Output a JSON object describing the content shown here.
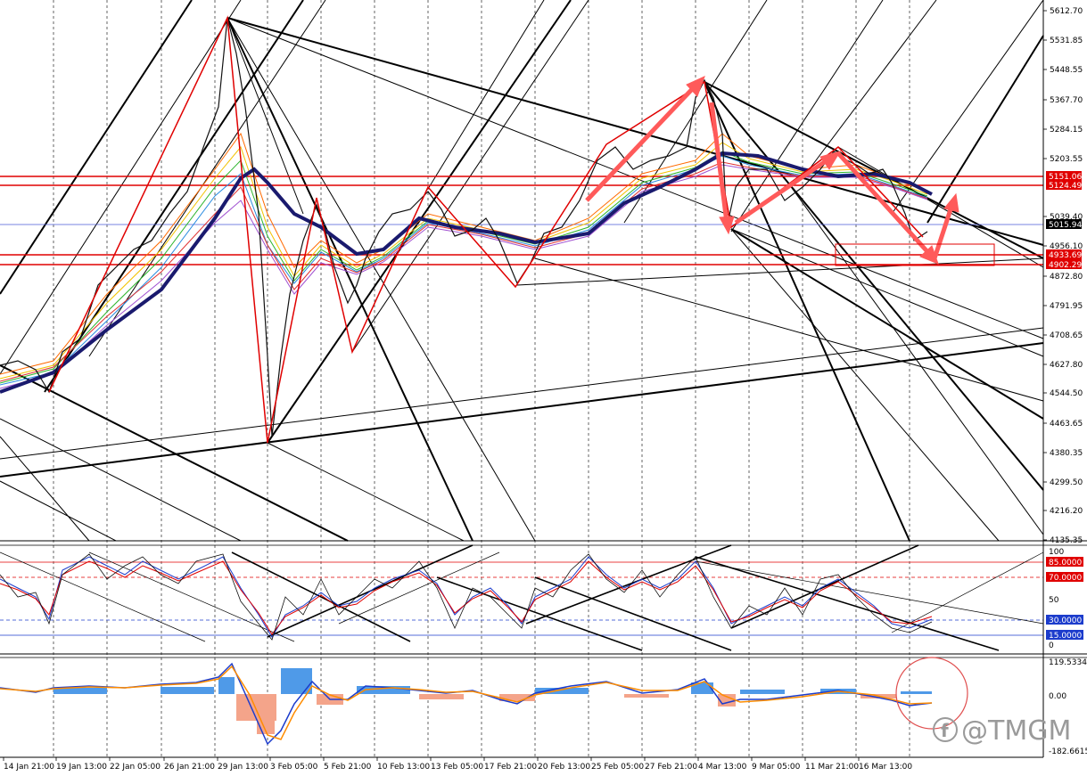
{
  "main_pane": {
    "price_ticks": [
      "5612.70",
      "5531.85",
      "5448.55",
      "5367.70",
      "5284.15",
      "5203.55",
      "5039.40",
      "4956.10",
      "4872.80",
      "4791.95",
      "4708.65",
      "4627.80",
      "4544.50",
      "4463.65",
      "4380.35",
      "4299.50",
      "4216.20",
      "4135.35"
    ],
    "level_tags": [
      {
        "text": "5151.06",
        "color": "#e00000"
      },
      {
        "text": "5124.49",
        "color": "#e00000"
      },
      {
        "text": "5015.94",
        "color": "#000000"
      },
      {
        "text": "4933.69",
        "color": "#e00000"
      },
      {
        "text": "4902.29",
        "color": "#e00000"
      }
    ]
  },
  "oscillator_pane": {
    "ticks": [
      "100",
      "50",
      "0"
    ],
    "level_tags": [
      {
        "text": "85.0000",
        "color": "#e00000"
      },
      {
        "text": "70.0000",
        "color": "#e00000"
      },
      {
        "text": "30.0000",
        "color": "#1c3ccc"
      },
      {
        "text": "15.0000",
        "color": "#1c3ccc"
      }
    ]
  },
  "macd_pane": {
    "ticks": [
      "119.5334",
      "0.00",
      "-182.6615"
    ]
  },
  "time_axis": [
    "14 Jan 21:00",
    "19 Jan 13:00",
    "22 Jan 05:00",
    "26 Jan 21:00",
    "29 Jan 13:00",
    "3 Feb 05:00",
    "5 Feb 21:00",
    "10 Feb 13:00",
    "13 Feb 05:00",
    "17 Feb 21:00",
    "20 Feb 13:00",
    "25 Feb 05:00",
    "27 Feb 21:00",
    "4 Mar 13:00",
    "9 Mar 05:00",
    "11 Mar 21:00",
    "16 Mar 13:00"
  ],
  "watermark": {
    "icon": "facebook-icon",
    "text": "@TMGM"
  },
  "colors": {
    "bull_arrow": "#ff5a5a",
    "level_red": "#e00000",
    "level_blue": "#1c3ccc",
    "ma_heavy": "#1a1a6e"
  }
}
